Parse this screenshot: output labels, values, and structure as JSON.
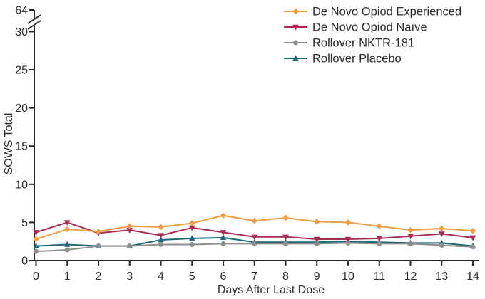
{
  "chart_data": {
    "type": "line",
    "title": "",
    "xlabel": "Days After Last Dose",
    "ylabel": "SOWS Total",
    "x": [
      0,
      1,
      2,
      3,
      4,
      5,
      6,
      7,
      8,
      9,
      10,
      11,
      12,
      13,
      14
    ],
    "x_tick_labels": [
      "0",
      "1",
      "2",
      "3",
      "4",
      "5",
      "6",
      "7",
      "8",
      "9",
      "10",
      "11",
      "12",
      "13",
      "14"
    ],
    "y_ticks": [
      0,
      5,
      10,
      15,
      20,
      25,
      30
    ],
    "y_axis_break": {
      "upper_label": "64",
      "style": "double-slash"
    },
    "ylim_linear": [
      0,
      32
    ],
    "grid": false,
    "legend_position": "top-right",
    "axis_color": "#262626",
    "series": [
      {
        "name": "De Novo Opiod Experienced",
        "color": "#F09C42",
        "marker": "diamond",
        "values": [
          2.8,
          4.1,
          3.8,
          4.5,
          4.4,
          4.9,
          5.9,
          5.2,
          5.6,
          5.1,
          5.0,
          4.5,
          4.0,
          4.2,
          3.9
        ]
      },
      {
        "name": "De Novo Opiod Naïve",
        "color": "#A92B55",
        "marker": "triangle-down",
        "values": [
          3.7,
          5.0,
          3.6,
          4.0,
          3.3,
          4.3,
          3.7,
          3.1,
          3.1,
          2.8,
          2.8,
          2.9,
          3.2,
          3.5,
          3.0
        ]
      },
      {
        "name": "Rollover NKTR-181",
        "color": "#8E8E8E",
        "marker": "circle",
        "values": [
          1.2,
          1.4,
          1.9,
          1.9,
          2.1,
          2.1,
          2.2,
          2.2,
          2.2,
          2.2,
          2.3,
          2.2,
          2.2,
          2.0,
          1.8
        ]
      },
      {
        "name": "Rollover Placebo",
        "color": "#1E6779",
        "marker": "triangle-up",
        "values": [
          1.9,
          2.1,
          1.9,
          1.9,
          2.7,
          2.9,
          3.0,
          2.4,
          2.4,
          2.4,
          2.5,
          2.4,
          2.3,
          2.3,
          1.9
        ]
      }
    ]
  }
}
